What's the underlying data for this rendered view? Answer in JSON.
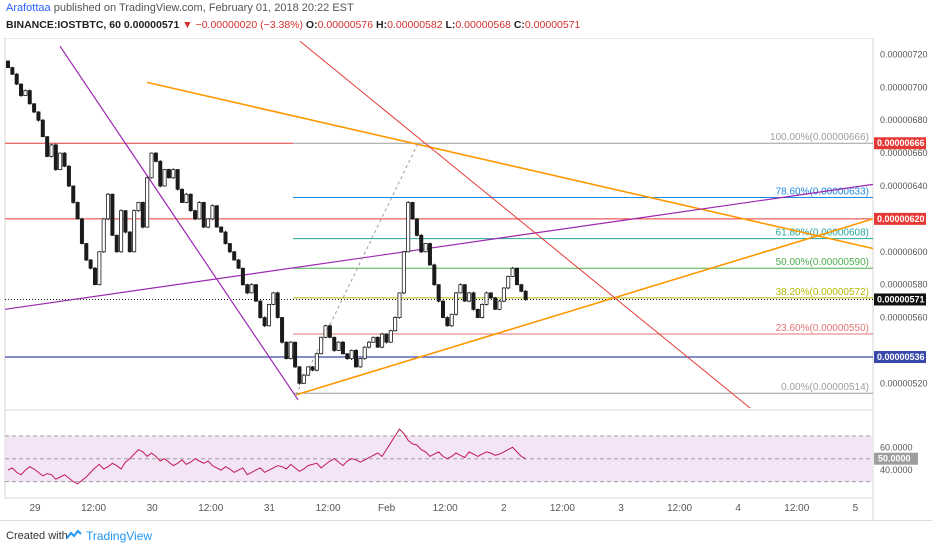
{
  "header": {
    "author": "Arafottaa",
    "published_text": "published on TradingView.com, February 01, 2018 20:22 EST",
    "symbol": "BINANCE:IOSTBTC, 60",
    "last_price": "0.00000571",
    "change_text": "▼ −0.00000020 (−3.38%)",
    "o_label": "O:",
    "o": "0.00000576",
    "h_label": "H:",
    "h": "0.00000582",
    "l_label": "L:",
    "l": "0.00000568",
    "c_label": "C:",
    "c": "0.00000571"
  },
  "footer": {
    "created_with": "Created with",
    "brand": "TradingView"
  },
  "colors": {
    "up": "#ffffff",
    "down": "#1b1b1b",
    "fib_gray": "#9e9e9e",
    "fib_blue": "#1e88e5",
    "fib_teal": "#26a69a",
    "fib_green": "#4caf50",
    "fib_olive": "#b5b800",
    "fib_red": "#e57373",
    "resistance": "#e53935",
    "support": "#3949ab",
    "trend_orange": "#ff9800",
    "trend_purple": "#9c27b0",
    "rsi_fill": "#f3e5f5"
  },
  "chart_data": {
    "type": "candlestick",
    "ylim": [
      5.05e-06,
      7.3e-06
    ],
    "y_ticks": [
      "0.00000720",
      "0.00000700",
      "0.00000680",
      "0.00000660",
      "0.00000640",
      "0.00000600",
      "0.00000580",
      "0.00000560",
      "0.00000520"
    ],
    "x_ticks": [
      "29",
      "12:00",
      "30",
      "12:00",
      "31",
      "12:00",
      "Feb",
      "12:00",
      "2",
      "12:00",
      "3",
      "12:00",
      "4",
      "12:00",
      "5"
    ],
    "close": [
      7.12e-06,
      7.08e-06,
      7.02e-06,
      6.95e-06,
      6.98e-06,
      6.9e-06,
      6.85e-06,
      6.8e-06,
      6.7e-06,
      6.58e-06,
      6.65e-06,
      6.5e-06,
      6.6e-06,
      6.52e-06,
      6.4e-06,
      6.3e-06,
      6.2e-06,
      6.05e-06,
      5.95e-06,
      5.9e-06,
      5.8e-06,
      6e-06,
      6.2e-06,
      6.35e-06,
      6.1e-06,
      6e-06,
      6.25e-06,
      6.12e-06,
      6e-06,
      6.25e-06,
      6.3e-06,
      6.15e-06,
      6.45e-06,
      6.6e-06,
      6.55e-06,
      6.4e-06,
      6.5e-06,
      6.45e-06,
      6.5e-06,
      6.38e-06,
      6.3e-06,
      6.35e-06,
      6.25e-06,
      6.2e-06,
      6.3e-06,
      6.15e-06,
      6.2e-06,
      6.28e-06,
      6.15e-06,
      6.12e-06,
      6.05e-06,
      6e-06,
      5.95e-06,
      5.9e-06,
      5.8e-06,
      5.75e-06,
      5.8e-06,
      5.7e-06,
      5.6e-06,
      5.55e-06,
      5.68e-06,
      5.75e-06,
      5.6e-06,
      5.45e-06,
      5.35e-06,
      5.45e-06,
      5.3e-06,
      5.2e-06,
      5.25e-06,
      5.3e-06,
      5.28e-06,
      5.38e-06,
      5.48e-06,
      5.55e-06,
      5.48e-06,
      5.4e-06,
      5.45e-06,
      5.38e-06,
      5.35e-06,
      5.4e-06,
      5.3e-06,
      5.35e-06,
      5.42e-06,
      5.45e-06,
      5.48e-06,
      5.42e-06,
      5.5e-06,
      5.45e-06,
      5.52e-06,
      5.6e-06,
      5.75e-06,
      6e-06,
      6.3e-06,
      6.2e-06,
      6.1e-06,
      6e-06,
      6.05e-06,
      5.92e-06,
      5.8e-06,
      5.7e-06,
      5.6e-06,
      5.55e-06,
      5.62e-06,
      5.75e-06,
      5.8e-06,
      5.7e-06,
      5.75e-06,
      5.65e-06,
      5.6e-06,
      5.68e-06,
      5.75e-06,
      5.72e-06,
      5.65e-06,
      5.7e-06,
      5.78e-06,
      5.85e-06,
      5.9e-06,
      5.8e-06,
      5.76e-06,
      5.71e-06
    ],
    "fib_levels": [
      {
        "label": "100.00%(0.00000666)",
        "value": 6.66e-06,
        "color": "#9e9e9e"
      },
      {
        "label": "78.60%(0.00000633)",
        "value": 6.33e-06,
        "color": "#1e88e5"
      },
      {
        "label": "61.80%(0.00000608)",
        "value": 6.08e-06,
        "color": "#26a69a"
      },
      {
        "label": "50.00%(0.00000590)",
        "value": 5.9e-06,
        "color": "#4caf50"
      },
      {
        "label": "38.20%(0.00000572)",
        "value": 5.72e-06,
        "color": "#b5b800"
      },
      {
        "label": "23.60%(0.00000550)",
        "value": 5.5e-06,
        "color": "#e57373"
      },
      {
        "label": "0.00%(0.00000514)",
        "value": 5.14e-06,
        "color": "#9e9e9e"
      }
    ],
    "price_tags": [
      {
        "label": "0.00000666",
        "value": 6.66e-06,
        "color": "#e53935"
      },
      {
        "label": "0.00000620",
        "value": 6.2e-06,
        "color": "#e53935"
      },
      {
        "label": "0.00000571",
        "value": 5.71e-06,
        "color": "#111111"
      },
      {
        "label": "0.00000536",
        "value": 5.36e-06,
        "color": "#3949ab"
      }
    ],
    "rsi": {
      "ylim": [
        20,
        90
      ],
      "ticks": [
        "60.0000",
        "40.0000"
      ],
      "current_label": "50.0000",
      "upper": 70,
      "lower": 30,
      "mid": 50,
      "values": [
        40,
        42,
        38,
        36,
        40,
        43,
        41,
        38,
        35,
        37,
        36,
        32,
        34,
        36,
        33,
        30,
        28,
        31,
        34,
        38,
        42,
        45,
        41,
        43,
        46,
        44,
        41,
        47,
        50,
        54,
        58,
        56,
        52,
        55,
        52,
        48,
        50,
        47,
        44,
        46,
        49,
        45,
        47,
        50,
        48,
        46,
        48,
        44,
        42,
        40,
        43,
        41,
        38,
        40,
        42,
        36,
        38,
        40,
        42,
        38,
        40,
        42,
        44,
        43,
        41,
        45,
        42,
        39,
        41,
        44,
        45,
        46,
        42,
        45,
        48,
        50,
        47,
        44,
        48,
        50,
        49,
        47,
        49,
        51,
        53,
        55,
        52,
        58,
        64,
        70,
        76,
        72,
        66,
        63,
        62,
        58,
        56,
        52,
        54,
        56,
        52,
        50,
        52,
        55,
        53,
        51,
        56,
        54,
        52,
        54,
        56,
        55,
        53,
        54,
        56,
        58,
        60,
        56,
        52,
        50
      ]
    }
  }
}
